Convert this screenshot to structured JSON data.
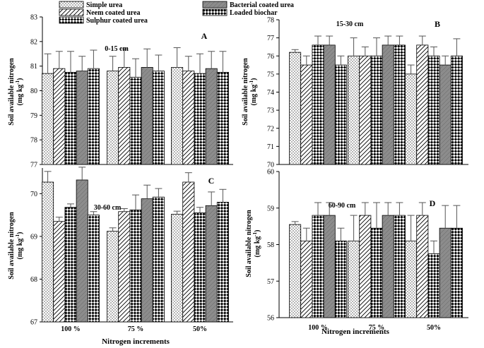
{
  "figure": {
    "x_axis_label": "Nitrogen increments",
    "y_axis_label_main": "Soil available nitrogen",
    "y_axis_label_unit_pre": "(mg kg",
    "y_axis_label_unit_sup": "-1",
    "y_axis_label_unit_post": ")"
  },
  "legend": [
    {
      "name": "Simple urea",
      "pattern": "dots"
    },
    {
      "name": "Neem coated urea",
      "pattern": "diag"
    },
    {
      "name": "Sulphur coated urea",
      "pattern": "checker"
    },
    {
      "name": "Bacterial coated urea",
      "pattern": "gray"
    },
    {
      "name": "Loaded biochar",
      "pattern": "checker"
    }
  ],
  "chart_data": [
    {
      "type": "bar",
      "panel": "A",
      "depth": "0-15 cm",
      "categories": [
        "100 %",
        "75 %",
        "50%"
      ],
      "ylim": [
        77,
        83
      ],
      "yticks": [
        77,
        78,
        79,
        80,
        81,
        82,
        83
      ],
      "series": [
        {
          "name": "Simple urea",
          "values": [
            80.7,
            80.8,
            80.95
          ],
          "errors": [
            0.8,
            0.6,
            0.8
          ]
        },
        {
          "name": "Neem coated urea",
          "values": [
            80.9,
            80.95,
            80.8
          ],
          "errors": [
            0.7,
            0.75,
            0.6
          ]
        },
        {
          "name": "Sulphur coated urea",
          "values": [
            80.75,
            80.55,
            80.7
          ],
          "errors": [
            0.85,
            0.75,
            0.8
          ]
        },
        {
          "name": "Bacterial coated urea",
          "values": [
            80.8,
            80.95,
            80.9
          ],
          "errors": [
            0.6,
            0.75,
            0.7
          ]
        },
        {
          "name": "Loaded biochar",
          "values": [
            80.9,
            80.8,
            80.75
          ],
          "errors": [
            0.75,
            0.65,
            0.85
          ]
        }
      ]
    },
    {
      "type": "bar",
      "panel": "B",
      "depth": "15-30 cm",
      "categories": [
        "100 %",
        "75 %",
        "50%"
      ],
      "ylim": [
        70,
        78
      ],
      "yticks": [
        70,
        71,
        72,
        73,
        74,
        75,
        76,
        77,
        78
      ],
      "series": [
        {
          "name": "Simple urea",
          "values": [
            76.2,
            76.0,
            75.0
          ],
          "errors": [
            0.15,
            1.0,
            0.5
          ]
        },
        {
          "name": "Neem coated urea",
          "values": [
            75.5,
            76.0,
            76.6
          ],
          "errors": [
            0.5,
            0.5,
            0.5
          ]
        },
        {
          "name": "Sulphur coated urea",
          "values": [
            76.6,
            76.0,
            76.0
          ],
          "errors": [
            0.5,
            1.0,
            0.5
          ]
        },
        {
          "name": "Bacterial coated urea",
          "values": [
            76.6,
            76.6,
            75.5
          ],
          "errors": [
            0.5,
            0.5,
            0.5
          ]
        },
        {
          "name": "Loaded biochar",
          "values": [
            75.5,
            76.6,
            76.0
          ],
          "errors": [
            0.5,
            0.5,
            0.95
          ]
        }
      ]
    },
    {
      "type": "bar",
      "panel": "C",
      "depth": "30-60 cm",
      "categories": [
        "100 %",
        "75 %",
        "50%"
      ],
      "ylim": [
        67,
        70.6
      ],
      "yticks": [
        67,
        68,
        69,
        70
      ],
      "series": [
        {
          "name": "Simple urea",
          "values": [
            70.27,
            69.12,
            69.52
          ],
          "errors": [
            0.25,
            0.08,
            0.07
          ]
        },
        {
          "name": "Neem coated urea",
          "values": [
            69.35,
            69.58,
            70.27
          ],
          "errors": [
            0.1,
            0.07,
            0.22
          ]
        },
        {
          "name": "Sulphur coated urea",
          "values": [
            69.68,
            69.62,
            69.55
          ],
          "errors": [
            0.08,
            0.35,
            0.13
          ]
        },
        {
          "name": "Bacterial coated urea",
          "values": [
            70.32,
            69.88,
            69.72
          ],
          "errors": [
            0.3,
            0.32,
            0.32
          ]
        },
        {
          "name": "Loaded biochar",
          "values": [
            69.5,
            69.92,
            69.8
          ],
          "errors": [
            0.08,
            0.2,
            0.3
          ]
        }
      ]
    },
    {
      "type": "bar",
      "panel": "D",
      "depth": "60-90 cm",
      "categories": [
        "100 %",
        "75 %",
        "50%"
      ],
      "ylim": [
        56,
        60
      ],
      "yticks": [
        56,
        57,
        58,
        59,
        60
      ],
      "series": [
        {
          "name": "Simple urea",
          "values": [
            58.55,
            58.1,
            58.1
          ],
          "errors": [
            0.08,
            0.7,
            0.7
          ]
        },
        {
          "name": "Neem coated urea",
          "values": [
            58.1,
            58.8,
            58.8
          ],
          "errors": [
            0.35,
            0.35,
            0.35
          ]
        },
        {
          "name": "Sulphur coated urea",
          "values": [
            58.8,
            58.45,
            57.75
          ],
          "errors": [
            0.35,
            0.7,
            0.35
          ]
        },
        {
          "name": "Bacterial coated urea",
          "values": [
            58.8,
            58.8,
            58.45
          ],
          "errors": [
            0.35,
            0.35,
            0.62
          ]
        },
        {
          "name": "Loaded biochar",
          "values": [
            58.1,
            58.8,
            58.45
          ],
          "errors": [
            0.35,
            0.35,
            0.62
          ]
        }
      ]
    }
  ]
}
